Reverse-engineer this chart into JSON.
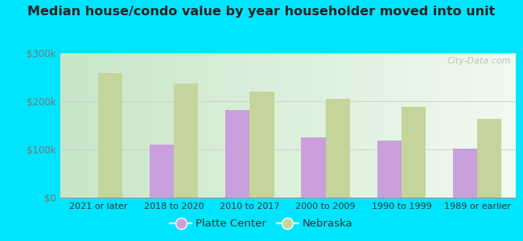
{
  "title": "Median house/condo value by year householder moved into unit",
  "categories": [
    "2021 or later",
    "2018 to 2020",
    "2010 to 2017",
    "2000 to 2009",
    "1990 to 1999",
    "1989 or earlier"
  ],
  "platte_center": [
    0,
    110000,
    182000,
    125000,
    118000,
    102000
  ],
  "nebraska": [
    258000,
    237000,
    220000,
    205000,
    188000,
    163000
  ],
  "platte_color": "#c9a0dc",
  "nebraska_color": "#c5d49a",
  "background_color": "#00e5ff",
  "ylim": [
    0,
    300000
  ],
  "yticks": [
    0,
    100000,
    200000,
    300000
  ],
  "ytick_labels": [
    "$0",
    "$100k",
    "$200k",
    "$300k"
  ],
  "bar_width": 0.32,
  "legend_labels": [
    "Platte Center",
    "Nebraska"
  ],
  "watermark": "City-Data.com"
}
